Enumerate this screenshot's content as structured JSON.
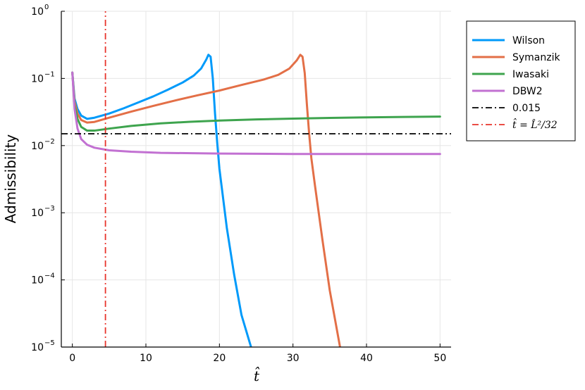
{
  "chart_data": {
    "type": "line",
    "title": "",
    "xlabel": "t̂",
    "ylabel": "Admissibility",
    "xlim": [
      -1.5,
      51.5
    ],
    "ylim_log10": [
      -5,
      0
    ],
    "y_scale": "log",
    "grid": true,
    "legend_position": "top-right outside",
    "x_ticks": [
      0,
      10,
      20,
      30,
      40,
      50
    ],
    "x_tick_labels": [
      "0",
      "10",
      "20",
      "30",
      "40",
      "50"
    ],
    "y_ticks": [
      {
        "base": "10",
        "exp": "0"
      },
      {
        "base": "10",
        "exp": "−1"
      },
      {
        "base": "10",
        "exp": "−2"
      },
      {
        "base": "10",
        "exp": "−3"
      },
      {
        "base": "10",
        "exp": "−4"
      },
      {
        "base": "10",
        "exp": "−5"
      }
    ],
    "series": [
      {
        "name": "Wilson",
        "color": "#009AFA",
        "style": "solid",
        "points": [
          [
            0,
            0.122
          ],
          [
            0.3,
            0.05
          ],
          [
            0.7,
            0.035
          ],
          [
            1.2,
            0.028
          ],
          [
            2,
            0.025
          ],
          [
            3,
            0.026
          ],
          [
            5,
            0.03
          ],
          [
            7,
            0.036
          ],
          [
            9,
            0.044
          ],
          [
            11,
            0.054
          ],
          [
            13,
            0.068
          ],
          [
            15,
            0.087
          ],
          [
            16.5,
            0.11
          ],
          [
            17.5,
            0.14
          ],
          [
            18.2,
            0.19
          ],
          [
            18.5,
            0.225
          ],
          [
            18.8,
            0.21
          ],
          [
            19.1,
            0.1
          ],
          [
            19.4,
            0.03
          ],
          [
            19.7,
            0.011
          ],
          [
            20,
            0.0045
          ],
          [
            21,
            0.0006
          ],
          [
            22,
            0.00012
          ],
          [
            23,
            3e-05
          ],
          [
            24.3,
            1e-05
          ]
        ]
      },
      {
        "name": "Symanzik",
        "color": "#E36F47",
        "style": "solid",
        "points": [
          [
            0,
            0.122
          ],
          [
            0.3,
            0.045
          ],
          [
            0.7,
            0.03
          ],
          [
            1.2,
            0.024
          ],
          [
            2,
            0.022
          ],
          [
            3,
            0.0225
          ],
          [
            5,
            0.026
          ],
          [
            8,
            0.032
          ],
          [
            11,
            0.039
          ],
          [
            14,
            0.047
          ],
          [
            17,
            0.056
          ],
          [
            20,
            0.066
          ],
          [
            23,
            0.08
          ],
          [
            26,
            0.096
          ],
          [
            28,
            0.113
          ],
          [
            29.5,
            0.14
          ],
          [
            30.5,
            0.185
          ],
          [
            31,
            0.225
          ],
          [
            31.3,
            0.21
          ],
          [
            31.6,
            0.12
          ],
          [
            31.9,
            0.04
          ],
          [
            32.2,
            0.015
          ],
          [
            32.5,
            0.0065
          ],
          [
            33,
            0.0025
          ],
          [
            34,
            0.0004
          ],
          [
            35,
            7e-05
          ],
          [
            36.4,
            1e-05
          ]
        ]
      },
      {
        "name": "Iwasaki",
        "color": "#3EA44E",
        "style": "solid",
        "points": [
          [
            0,
            0.122
          ],
          [
            0.3,
            0.04
          ],
          [
            0.7,
            0.025
          ],
          [
            1.2,
            0.019
          ],
          [
            2,
            0.0167
          ],
          [
            3,
            0.0167
          ],
          [
            5,
            0.0179
          ],
          [
            8,
            0.0196
          ],
          [
            12,
            0.0214
          ],
          [
            16,
            0.0226
          ],
          [
            20,
            0.0236
          ],
          [
            25,
            0.0245
          ],
          [
            30,
            0.0252
          ],
          [
            35,
            0.0258
          ],
          [
            40,
            0.0263
          ],
          [
            45,
            0.0267
          ],
          [
            50,
            0.027
          ]
        ]
      },
      {
        "name": "DBW2",
        "color": "#C271D2",
        "style": "solid",
        "points": [
          [
            0,
            0.122
          ],
          [
            0.3,
            0.035
          ],
          [
            0.7,
            0.018
          ],
          [
            1.2,
            0.0125
          ],
          [
            2,
            0.0103
          ],
          [
            3,
            0.0093
          ],
          [
            5,
            0.0085
          ],
          [
            8,
            0.0081
          ],
          [
            12,
            0.0078
          ],
          [
            20,
            0.0076
          ],
          [
            30,
            0.0075
          ],
          [
            40,
            0.0075
          ],
          [
            50,
            0.0075
          ]
        ]
      },
      {
        "name": "0.015",
        "color": "#000000",
        "style": "dashdot",
        "points": [
          [
            -1.5,
            0.015
          ],
          [
            51.5,
            0.015
          ]
        ]
      },
      {
        "name": "t̂ = L̂²/32",
        "color": "#E8342C",
        "style": "dashdot",
        "points": [
          [
            4.5,
            1e-05
          ],
          [
            4.5,
            1
          ]
        ]
      }
    ]
  }
}
